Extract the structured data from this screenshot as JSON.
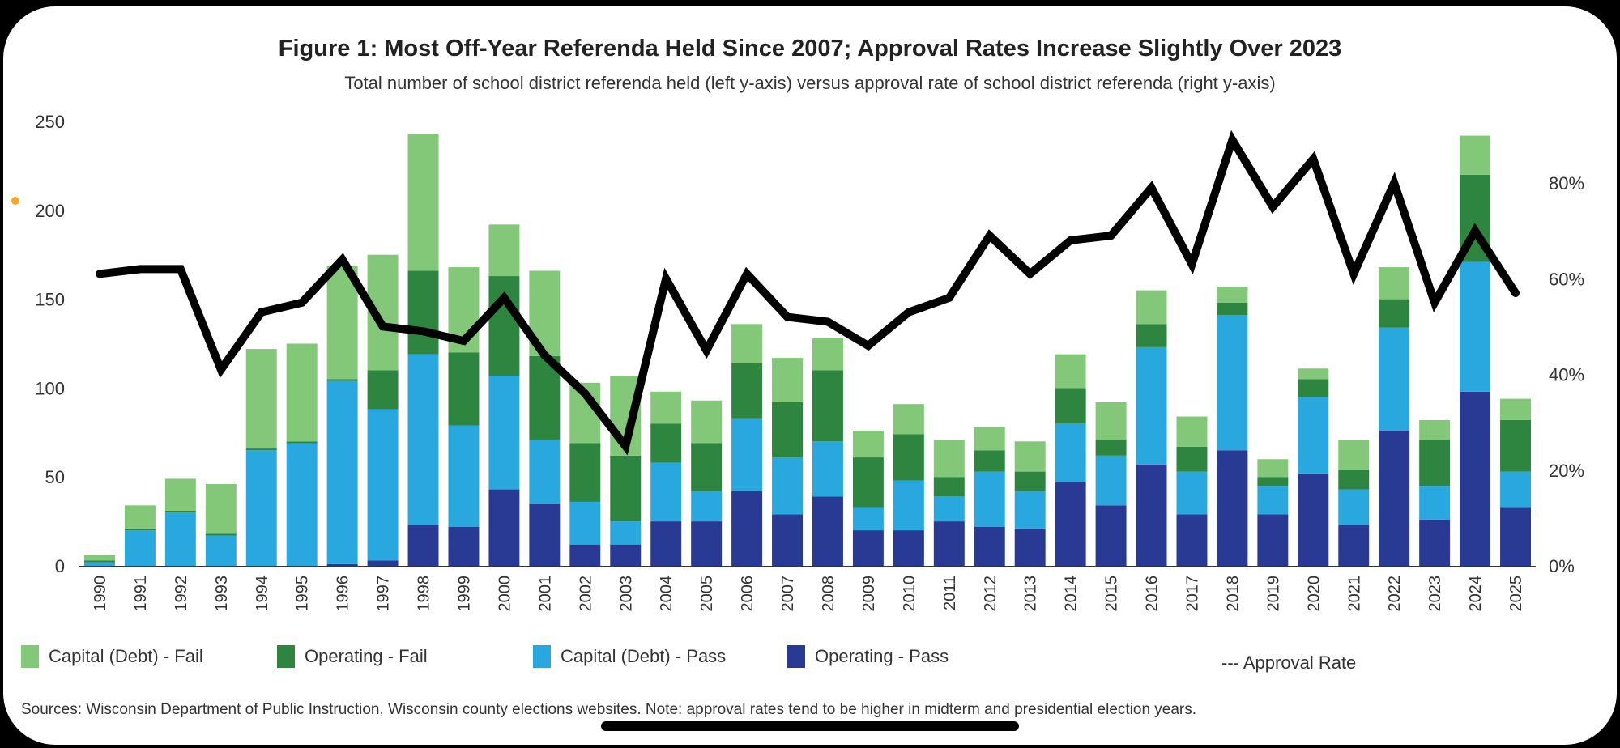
{
  "chart_data": {
    "type": "bar",
    "stacked": true,
    "title": "Figure 1: Most Off-Year Referenda Held Since 2007; Approval Rates Increase Slightly Over 2023",
    "subtitle": "Total number of school district referenda held (left y-axis) versus approval rate of school district referenda (right y-axis)",
    "categories": [
      "1990",
      "1991",
      "1992",
      "1993",
      "1994",
      "1995",
      "1996",
      "1997",
      "1998",
      "1999",
      "2000",
      "2001",
      "2002",
      "2003",
      "2004",
      "2005",
      "2006",
      "2007",
      "2008",
      "2009",
      "2010",
      "2011",
      "2012",
      "2013",
      "2014",
      "2015",
      "2016",
      "2017",
      "2018",
      "2019",
      "2020",
      "2021",
      "2022",
      "2023",
      "2024",
      "2025"
    ],
    "series": [
      {
        "name": "Operating - Pass",
        "color": "#283a93",
        "values": [
          0,
          0,
          0,
          0,
          0,
          0,
          1,
          3,
          23,
          22,
          43,
          35,
          12,
          12,
          25,
          25,
          42,
          29,
          39,
          20,
          20,
          25,
          22,
          21,
          47,
          34,
          57,
          29,
          65,
          29,
          52,
          23,
          76,
          26,
          98,
          33
        ]
      },
      {
        "name": "Capital (Debt) - Pass",
        "color": "#29a8df",
        "values": [
          2,
          20,
          30,
          17,
          65,
          69,
          103,
          85,
          96,
          57,
          64,
          36,
          24,
          13,
          33,
          17,
          41,
          32,
          31,
          13,
          28,
          14,
          31,
          21,
          33,
          28,
          66,
          24,
          76,
          16,
          43,
          20,
          58,
          19,
          73,
          20
        ]
      },
      {
        "name": "Operating - Fail",
        "color": "#2e8540",
        "values": [
          1,
          1,
          1,
          1,
          1,
          1,
          1,
          22,
          47,
          41,
          56,
          47,
          33,
          37,
          22,
          27,
          31,
          31,
          40,
          28,
          26,
          11,
          12,
          11,
          20,
          9,
          13,
          14,
          7,
          5,
          10,
          11,
          16,
          26,
          49,
          29
        ]
      },
      {
        "name": "Capital (Debt) - Fail",
        "color": "#82c878",
        "values": [
          3,
          13,
          18,
          28,
          56,
          55,
          64,
          65,
          77,
          48,
          29,
          48,
          34,
          45,
          18,
          24,
          22,
          25,
          18,
          15,
          17,
          21,
          13,
          17,
          19,
          21,
          19,
          17,
          9,
          10,
          6,
          17,
          18,
          11,
          22,
          12
        ]
      }
    ],
    "line_series": {
      "name": "Approval Rate",
      "axis": "right",
      "values": [
        61,
        62,
        62,
        41,
        53,
        55,
        64,
        50,
        49,
        47,
        56,
        44,
        36,
        25,
        60,
        45,
        61,
        52,
        51,
        46,
        53,
        56,
        69,
        61,
        68,
        69,
        79,
        63,
        89,
        75,
        85,
        61,
        80,
        55,
        70,
        57
      ]
    },
    "ylabel_left": "",
    "ylabel_right": "",
    "ylim_left": [
      0,
      250
    ],
    "yticks_left": [
      "0",
      "50",
      "100",
      "150",
      "200",
      "250"
    ],
    "ylim_right": [
      0,
      100
    ],
    "yticks_right": [
      "0%",
      "20%",
      "40%",
      "60%",
      "80%"
    ],
    "grid": false,
    "legend": [
      "Capital (Debt) - Fail",
      "Operating - Fail",
      "Capital (Debt) - Pass",
      "Operating - Pass",
      "--- Approval Rate"
    ],
    "legend_position": "bottom"
  },
  "source_note": "Sources: Wisconsin Department of Public Instruction, Wisconsin county elections websites. Note: approval rates tend to be higher in midterm and presidential election years.",
  "accent_dot_color": "#f5a623"
}
